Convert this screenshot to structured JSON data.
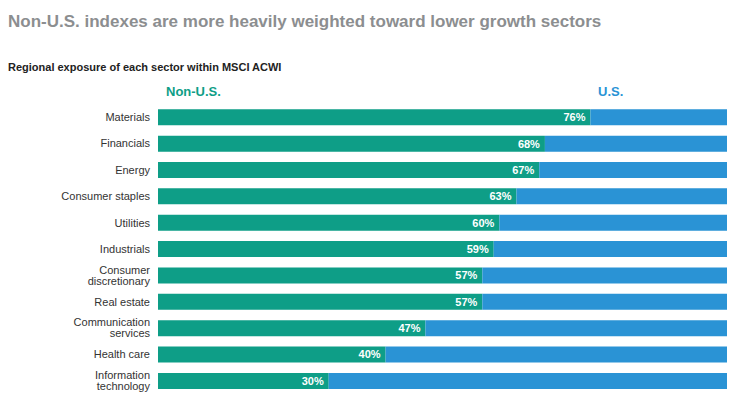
{
  "chart_data": {
    "type": "bar",
    "title": "Non-U.S. indexes are more heavily weighted toward lower growth sectors",
    "subtitle": "Regional exposure of each sector within MSCI ACWI",
    "orientation": "horizontal",
    "stacked": true,
    "legend": "top",
    "tick_labels": "y",
    "xlim": [
      0,
      100
    ],
    "categories": [
      "Materials",
      "Financials",
      "Energy",
      "Consumer staples",
      "Utilities",
      "Industrials",
      "Consumer discretionary",
      "Real estate",
      "Communication services",
      "Health care",
      "Information technology"
    ],
    "series": [
      {
        "name": "Non-U.S.",
        "color": "#0e9e87",
        "values": [
          76,
          68,
          67,
          63,
          60,
          59,
          57,
          57,
          47,
          40,
          30
        ],
        "value_labels": [
          "76%",
          "68%",
          "67%",
          "63%",
          "60%",
          "59%",
          "57%",
          "57%",
          "47%",
          "40%",
          "30%"
        ],
        "data_labels": true
      },
      {
        "name": "U.S.",
        "color": "#2a93d5",
        "values": [
          24,
          32,
          33,
          37,
          40,
          41,
          43,
          43,
          53,
          60,
          70
        ]
      }
    ]
  }
}
